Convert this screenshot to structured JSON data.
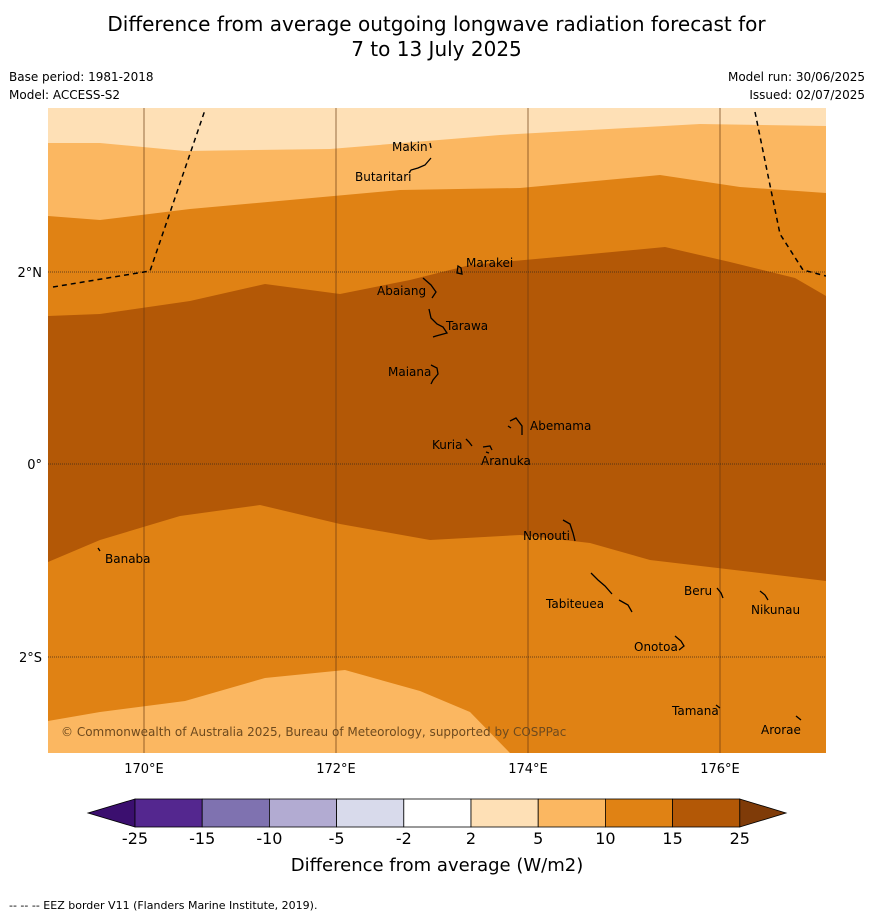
{
  "title_line1": "Difference from average outgoing longwave radiation forecast for",
  "title_line2": "7 to 13 July 2025",
  "base_period": "Base period: 1981-2018",
  "model": "Model: ACCESS-S2",
  "model_run": "Model run: 30/06/2025",
  "issued": "Issued: 02/07/2025",
  "copyright": "© Commonwealth of Australia 2025, Bureau of Meteorology, supported by COSPPac",
  "map": {
    "lon_ticks": [
      "170°E",
      "172°E",
      "174°E",
      "176°E"
    ],
    "lat_ticks": [
      "2°N",
      "0°",
      "2°S"
    ],
    "places": [
      {
        "name": "Makin"
      },
      {
        "name": "Butaritari"
      },
      {
        "name": "Marakei"
      },
      {
        "name": "Abaiang"
      },
      {
        "name": "Tarawa"
      },
      {
        "name": "Maiana"
      },
      {
        "name": "Abemama"
      },
      {
        "name": "Kuria"
      },
      {
        "name": "Aranuka"
      },
      {
        "name": "Nonouti"
      },
      {
        "name": "Banaba"
      },
      {
        "name": "Tabiteuea"
      },
      {
        "name": "Beru"
      },
      {
        "name": "Nikunau"
      },
      {
        "name": "Onotoa"
      },
      {
        "name": "Tamana"
      },
      {
        "name": "Arorae"
      }
    ]
  },
  "colorbar": {
    "ticks": [
      "-25",
      "-15",
      "-10",
      "-5",
      "-2",
      "2",
      "5",
      "10",
      "15",
      "25"
    ],
    "colors": [
      "#3b0f6f",
      "#54278f",
      "#7f72b0",
      "#b2abd2",
      "#d8daeb",
      "#ffffff",
      "#fee0b6",
      "#fbb761",
      "#e08214",
      "#b35806",
      "#7f3b08"
    ],
    "label": "Difference from average (W/m2)"
  },
  "footnote": "--  --  -- EEZ border V11 (Flanders Marine Institute, 2019)."
}
